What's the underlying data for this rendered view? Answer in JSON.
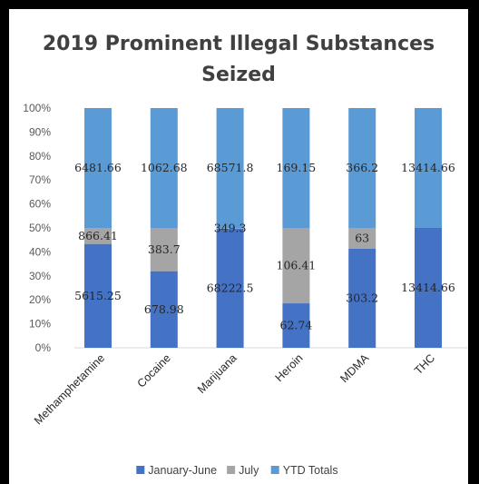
{
  "chart_data": {
    "type": "bar",
    "stacked": "percent",
    "title": "2019 Prominent Illegal Substances Seized",
    "title_lines": [
      "2019 Prominent Illegal Substances",
      "Seized"
    ],
    "categories": [
      "Methamphetamine",
      "Cocaine",
      "Marijuana",
      "Heroin",
      "MDMA",
      "THC"
    ],
    "series": [
      {
        "name": "January-June",
        "color": "#4472C4",
        "values": [
          5615.25,
          678.98,
          68222.5,
          62.74,
          303.2,
          13414.66
        ],
        "labels": [
          "5615.25",
          "678.98",
          "68222.5",
          "62.74",
          "303.2",
          "13414.66"
        ]
      },
      {
        "name": "July",
        "color": "#A5A5A5",
        "values": [
          866.41,
          383.7,
          349.3,
          106.41,
          63,
          0
        ],
        "labels": [
          "866.41",
          "383.7",
          "349.3",
          "106.41",
          "63",
          ""
        ]
      },
      {
        "name": "YTD Totals",
        "color": "#5B9BD5",
        "values": [
          6481.66,
          1062.68,
          68571.8,
          169.15,
          366.2,
          13414.66
        ],
        "labels": [
          "6481.66",
          "1062.68",
          "68571.8",
          "169.15",
          "366.2",
          "13414.66"
        ]
      }
    ],
    "y_ticks": [
      "0%",
      "10%",
      "20%",
      "30%",
      "40%",
      "50%",
      "60%",
      "70%",
      "80%",
      "90%",
      "100%"
    ],
    "ylim": [
      0,
      100
    ],
    "legend_position": "bottom",
    "grid": false
  }
}
